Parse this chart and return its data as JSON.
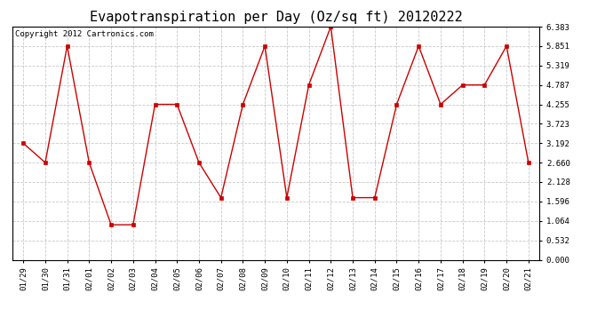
{
  "title": "Evapotranspiration per Day (Oz/sq ft) 20120222",
  "copyright_text": "Copyright 2012 Cartronics.com",
  "dates": [
    "01/29",
    "01/30",
    "01/31",
    "02/01",
    "02/02",
    "02/03",
    "02/04",
    "02/05",
    "02/06",
    "02/07",
    "02/08",
    "02/09",
    "02/10",
    "02/11",
    "02/12",
    "02/13",
    "02/14",
    "02/15",
    "02/16",
    "02/17",
    "02/18",
    "02/19",
    "02/20",
    "02/21"
  ],
  "values": [
    3.192,
    2.66,
    5.851,
    2.66,
    0.958,
    0.958,
    4.255,
    4.255,
    2.66,
    1.7,
    4.255,
    5.851,
    1.7,
    4.787,
    6.383,
    1.7,
    1.7,
    4.255,
    5.851,
    4.255,
    4.787,
    4.787,
    5.851,
    2.66
  ],
  "line_color": "#cc0000",
  "marker": "s",
  "marker_size": 2.5,
  "background_color": "#ffffff",
  "plot_bg_color": "#ffffff",
  "grid_color": "#bbbbbb",
  "ylim": [
    0.0,
    6.383
  ],
  "yticks": [
    0.0,
    0.532,
    1.064,
    1.596,
    2.128,
    2.66,
    3.192,
    3.723,
    4.255,
    4.787,
    5.319,
    5.851,
    6.383
  ],
  "title_fontsize": 11,
  "tick_fontsize": 6.5,
  "copyright_fontsize": 6.5
}
